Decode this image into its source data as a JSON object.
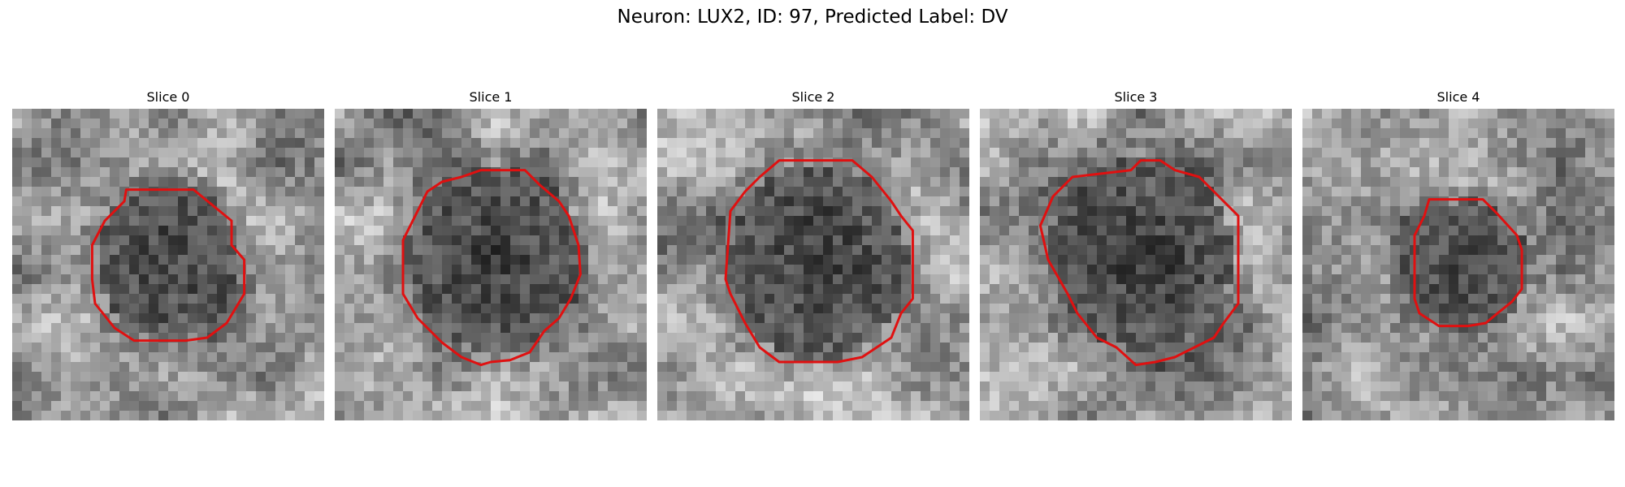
{
  "figure": {
    "title": "Neuron: LUX2, ID: 97, Predicted Label: DV"
  },
  "panels": [
    {
      "title": "Slice 0"
    },
    {
      "title": "Slice 1"
    },
    {
      "title": "Slice 2"
    },
    {
      "title": "Slice 3"
    },
    {
      "title": "Slice 4"
    }
  ],
  "contour_color": "#e01010"
}
